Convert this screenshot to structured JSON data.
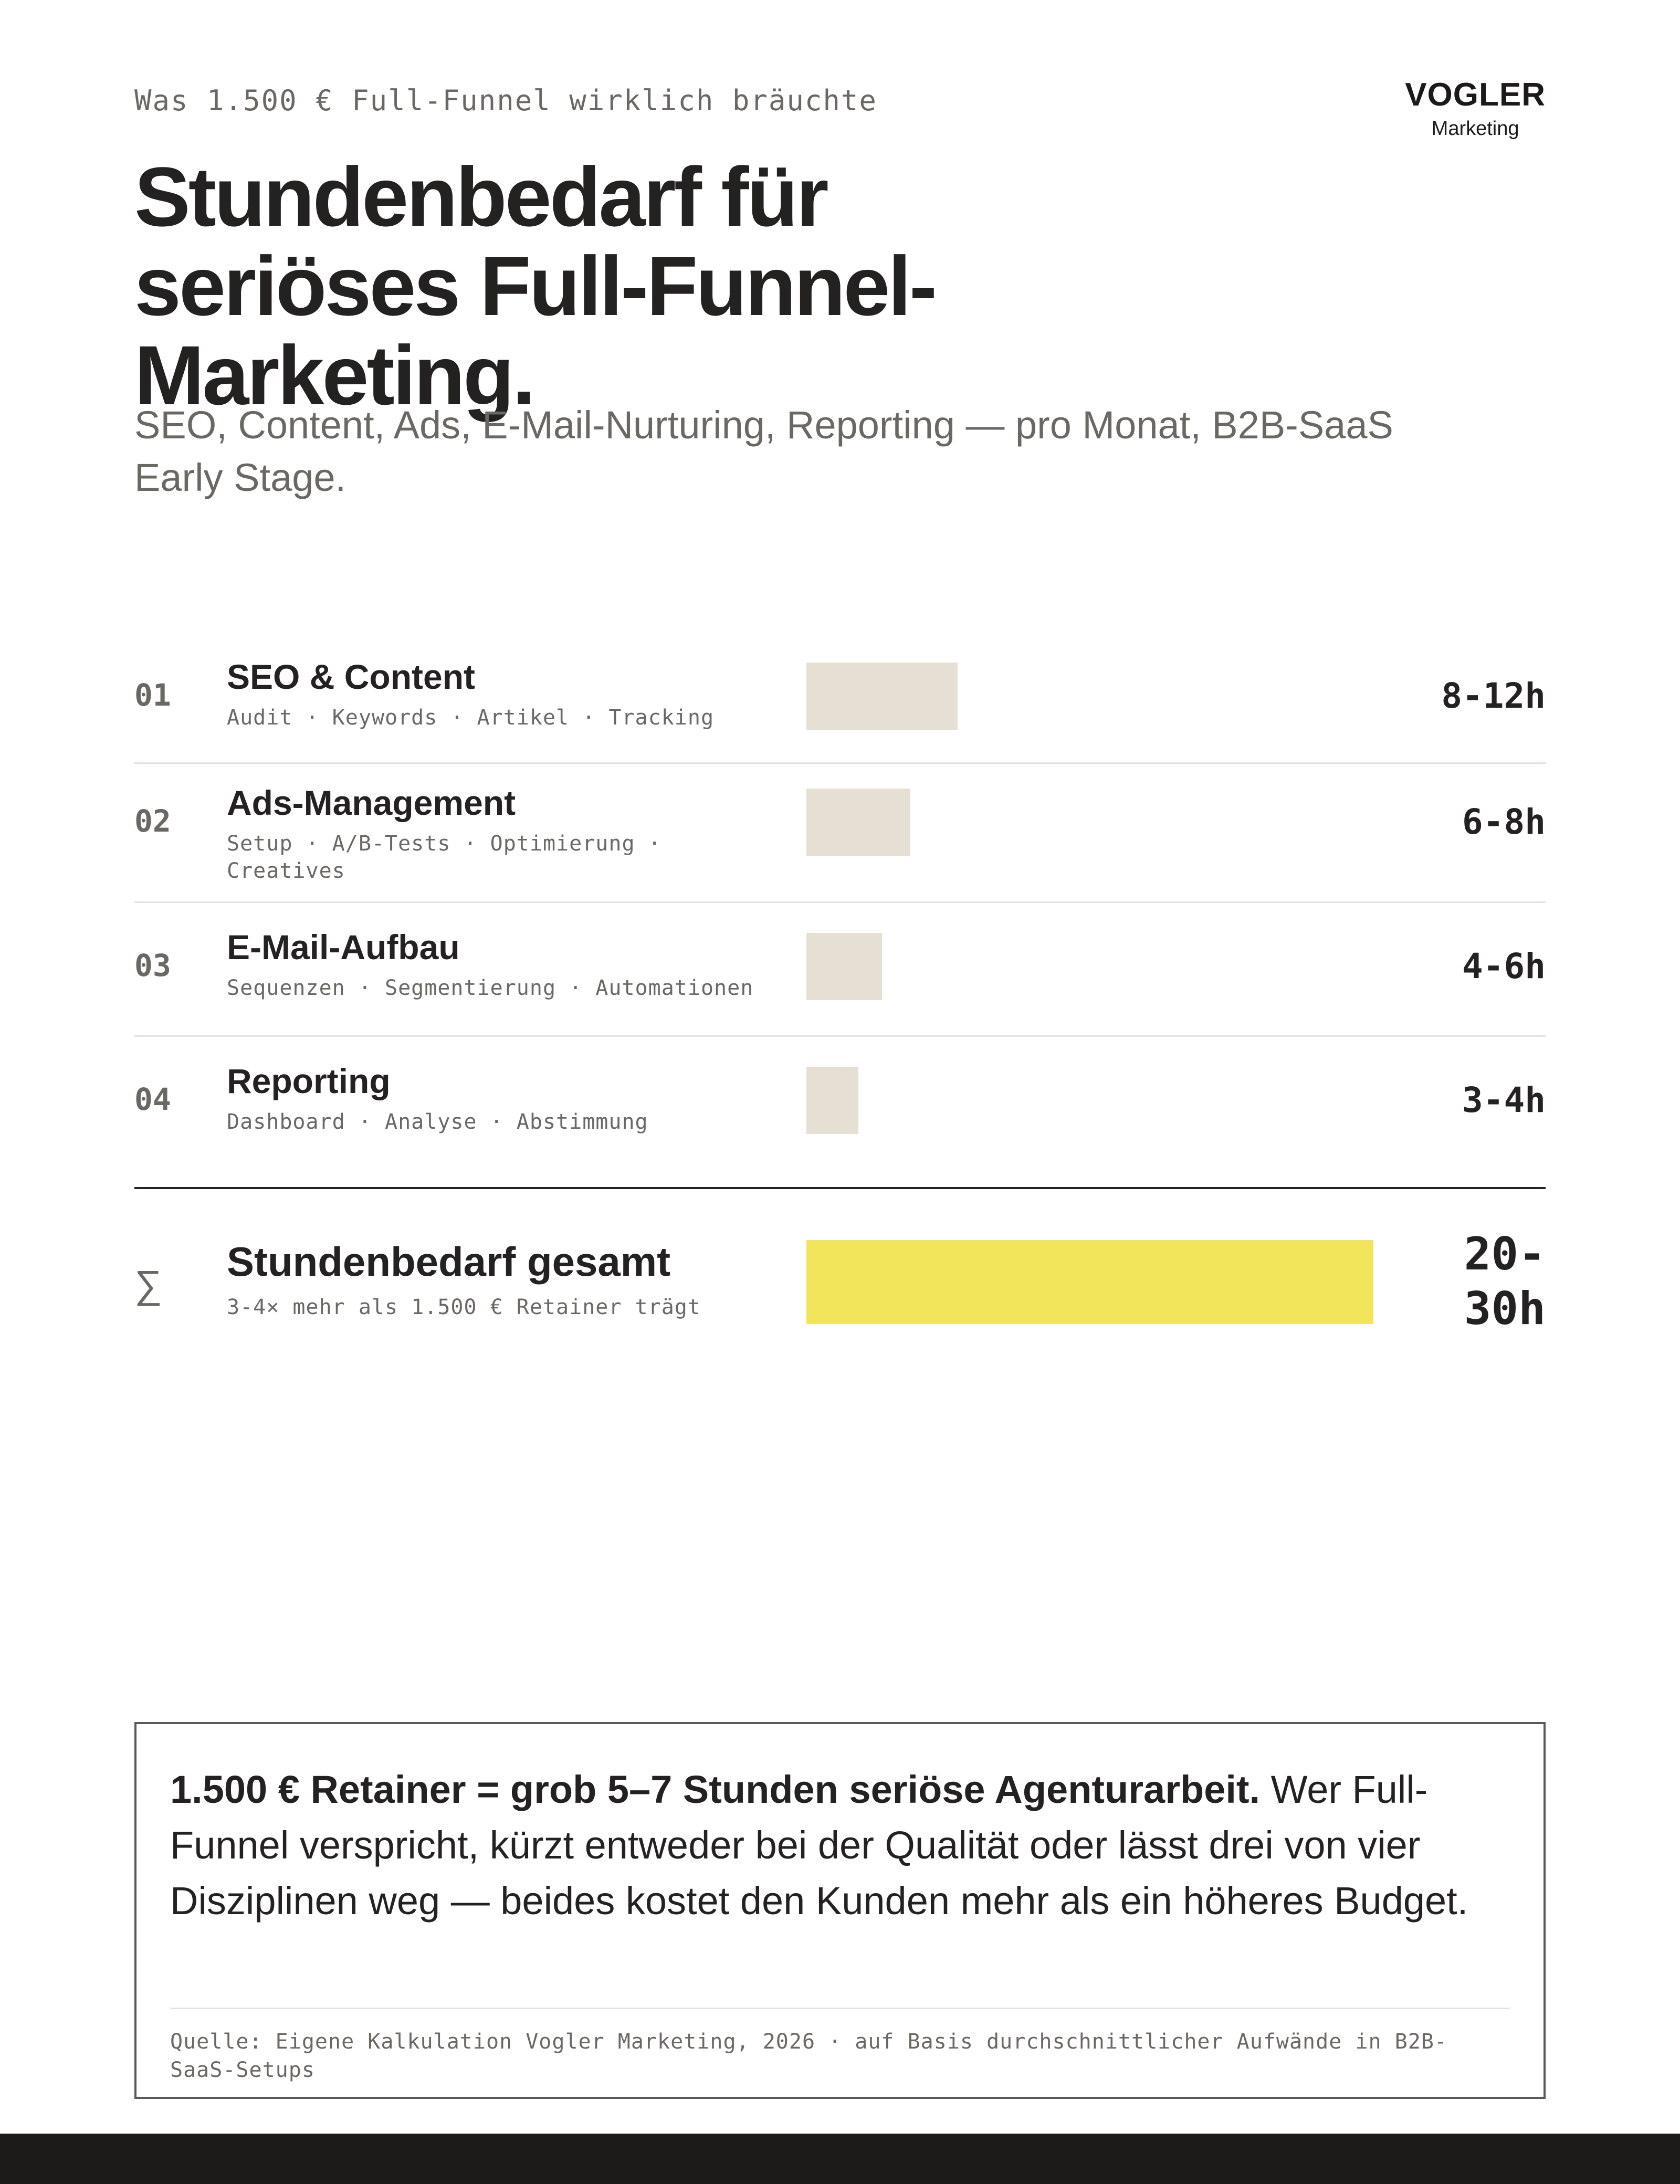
{
  "header": {
    "eyebrow": "Was 1.500 € Full-Funnel wirklich bräuchte",
    "title_lines": [
      "Stundenbedarf für",
      "seriöses Full-Funnel-",
      "Marketing."
    ],
    "subtitle_lines": [
      "SEO, Content, Ads, E-Mail-Nurturing, Reporting — pro Monat, B2B-SaaS",
      "Early Stage."
    ]
  },
  "logo": {
    "name": "VOGLER",
    "sub": "Marketing"
  },
  "colors": {
    "bar": "#e6dfd4",
    "total_bar": "#f2e55c",
    "text": "#232220",
    "muted": "#6a6863",
    "rule": "#e4e3df"
  },
  "chart_data": {
    "type": "bar",
    "orientation": "horizontal",
    "unit": "h",
    "categories": [
      "SEO & Content",
      "Ads-Management",
      "E-Mail-Aufbau",
      "Reporting"
    ],
    "series": [
      {
        "values": [
          {
            "min": 8,
            "max": 12
          },
          {
            "min": 6,
            "max": 8
          },
          {
            "min": 4,
            "max": 6
          },
          {
            "min": 3,
            "max": 4
          }
        ]
      }
    ],
    "rows": [
      {
        "num": "01",
        "label": "SEO & Content",
        "detail_lines": [
          "Audit · Keywords · Artikel · Tracking"
        ],
        "value_label": "8-12h"
      },
      {
        "num": "02",
        "label": "Ads-Management",
        "detail_lines": [
          "Setup · A/B-Tests · Optimierung ·",
          "Creatives"
        ],
        "value_label": "6-8h"
      },
      {
        "num": "03",
        "label": "E-Mail-Aufbau",
        "detail_lines": [
          "Sequenzen · Segmentierung · Automationen"
        ],
        "value_label": "4-6h"
      },
      {
        "num": "04",
        "label": "Reporting",
        "detail_lines": [
          "Dashboard · Analyse · Abstimmung"
        ],
        "value_label": "3-4h"
      }
    ],
    "total": {
      "symbol": "∑",
      "label": "Stundenbedarf gesamt",
      "detail": "3-4× mehr als 1.500 € Retainer trägt",
      "min": 20,
      "max": 30,
      "value_label_lines": [
        "20-",
        "30h"
      ]
    },
    "xlim": [
      0,
      30
    ],
    "grid": false,
    "legend": "none"
  },
  "callout": {
    "bold": "1.500 € Retainer = grob 5–7 Stunden seriöse Agenturarbeit.",
    "text": " Wer Full-Funnel verspricht, kürzt entweder bei der Qualität oder lässt drei von vier Disziplinen weg — beides kostet den Kunden mehr als ein höheres Budget.",
    "source": "Quelle: Eigene Kalkulation Vogler Marketing, 2026 · auf Basis durchschnittlicher Aufwände in B2B-SaaS-Setups"
  }
}
